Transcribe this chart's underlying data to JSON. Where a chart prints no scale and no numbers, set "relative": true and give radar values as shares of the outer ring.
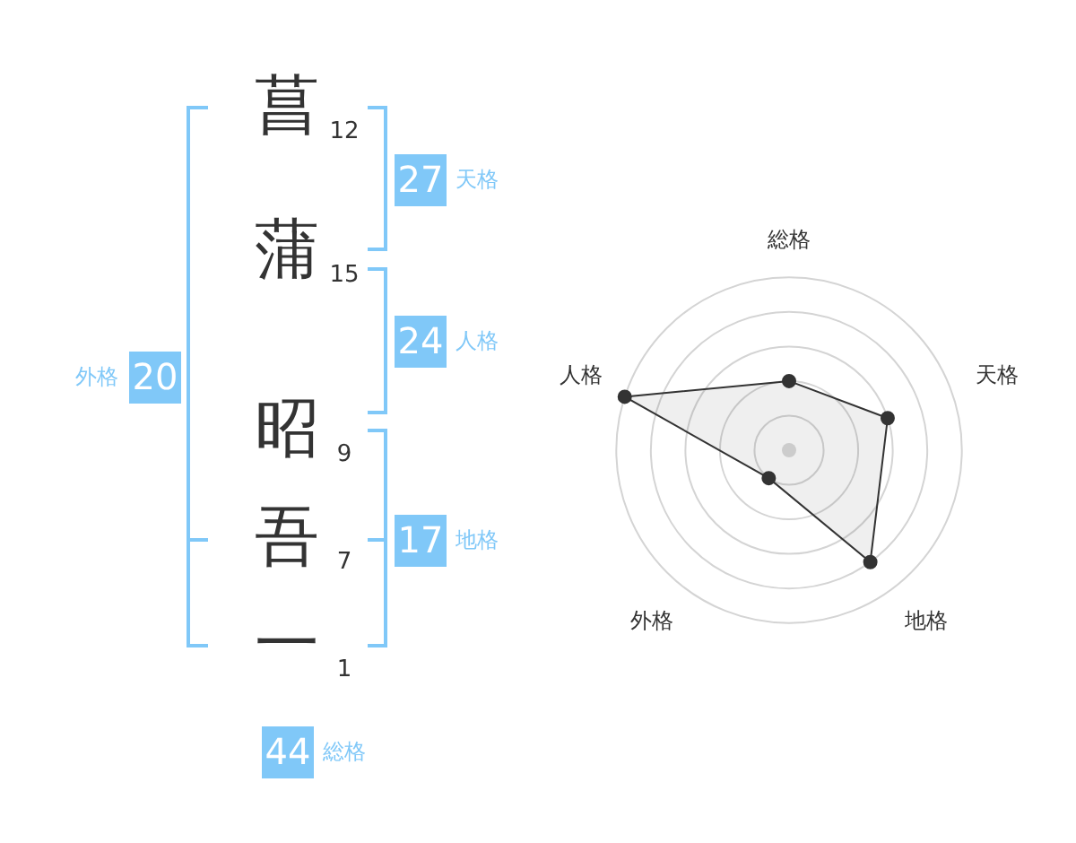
{
  "chart_data": [
    {
      "type": "other",
      "categories": [
        "菖",
        "蒲",
        "昭",
        "吾",
        "一"
      ],
      "values": [
        12,
        15,
        9,
        7,
        1
      ],
      "data_labels": true,
      "color": "#80c8f8",
      "annotations": [
        "27",
        "天格",
        "24",
        "人格",
        "17",
        "地格",
        "20",
        "外格",
        "44",
        "総格"
      ]
    },
    {
      "type": "radar",
      "categories": [
        "総格",
        "天格",
        "地格",
        "外格",
        "人格"
      ],
      "relative": true,
      "grid": true,
      "marker": "circle",
      "series": [
        {
          "color": "#333333",
          "values": [
            0.4,
            0.6,
            0.8,
            0.2,
            1.0
          ]
        }
      ]
    }
  ]
}
